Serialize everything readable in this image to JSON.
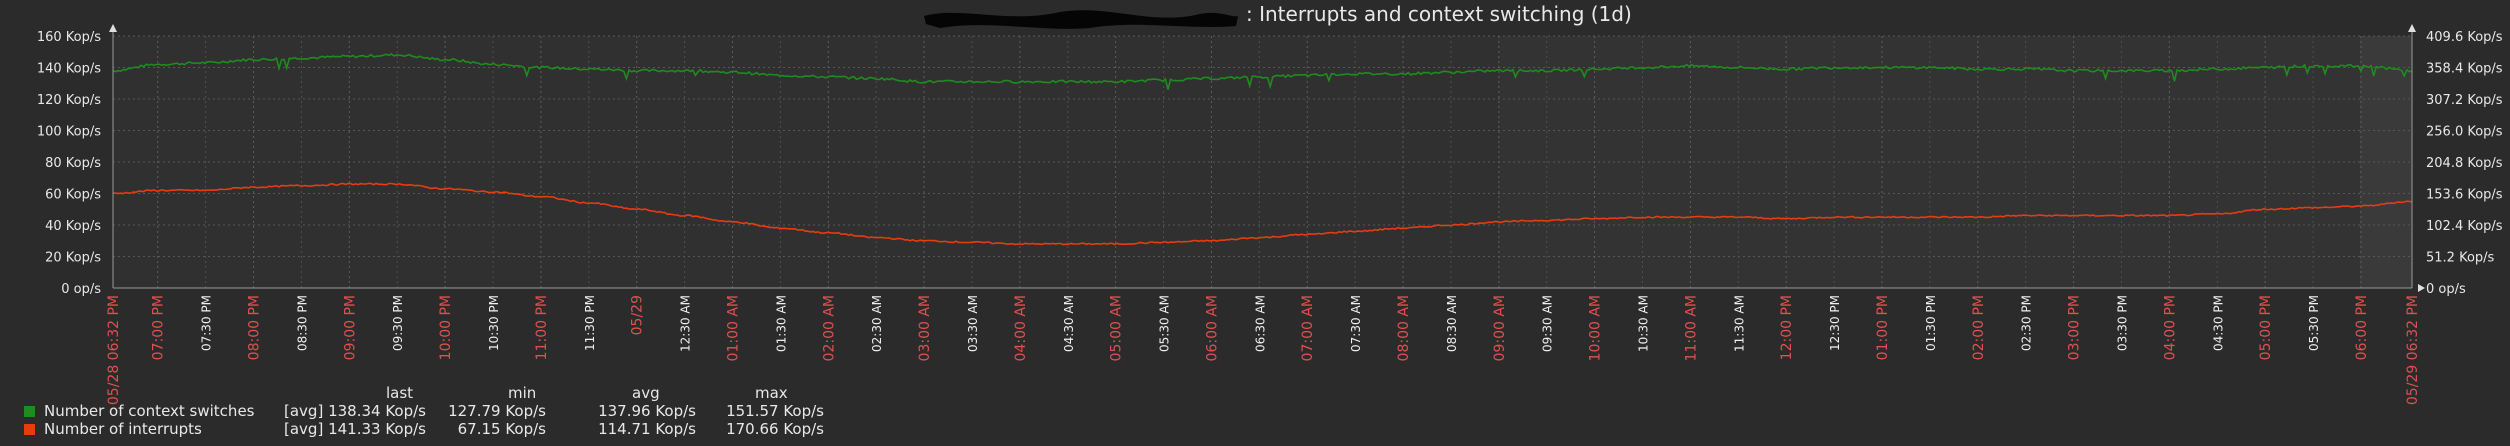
{
  "title": ": Interrupts and context switching (1d)",
  "colors": {
    "background": "#2b2b2b",
    "plot": "#333333",
    "grid": "#555555",
    "context": "#1e8c1e",
    "interrupts": "#e63c0f",
    "red_tick": "#e05050"
  },
  "chart_data": {
    "type": "line",
    "title": ": Interrupts and context switching (1d)",
    "x_start": "05/28 06:32 PM",
    "x_end": "05/29 06:32 PM",
    "x_ticks": [
      {
        "label": "05/28 06:32 PM",
        "h": 18.533,
        "major": true
      },
      {
        "label": "07:00 PM",
        "h": 19.0,
        "major": true
      },
      {
        "label": "07:30 PM",
        "h": 19.5,
        "major": false
      },
      {
        "label": "08:00 PM",
        "h": 20.0,
        "major": true
      },
      {
        "label": "08:30 PM",
        "h": 20.5,
        "major": false
      },
      {
        "label": "09:00 PM",
        "h": 21.0,
        "major": true
      },
      {
        "label": "09:30 PM",
        "h": 21.5,
        "major": false
      },
      {
        "label": "10:00 PM",
        "h": 22.0,
        "major": true
      },
      {
        "label": "10:30 PM",
        "h": 22.5,
        "major": false
      },
      {
        "label": "11:00 PM",
        "h": 23.0,
        "major": true
      },
      {
        "label": "11:30 PM",
        "h": 23.5,
        "major": false
      },
      {
        "label": "05/29",
        "h": 24.0,
        "major": true
      },
      {
        "label": "12:30 AM",
        "h": 24.5,
        "major": false
      },
      {
        "label": "01:00 AM",
        "h": 25.0,
        "major": true
      },
      {
        "label": "01:30 AM",
        "h": 25.5,
        "major": false
      },
      {
        "label": "02:00 AM",
        "h": 26.0,
        "major": true
      },
      {
        "label": "02:30 AM",
        "h": 26.5,
        "major": false
      },
      {
        "label": "03:00 AM",
        "h": 27.0,
        "major": true
      },
      {
        "label": "03:30 AM",
        "h": 27.5,
        "major": false
      },
      {
        "label": "04:00 AM",
        "h": 28.0,
        "major": true
      },
      {
        "label": "04:30 AM",
        "h": 28.5,
        "major": false
      },
      {
        "label": "05:00 AM",
        "h": 29.0,
        "major": true
      },
      {
        "label": "05:30 AM",
        "h": 29.5,
        "major": false
      },
      {
        "label": "06:00 AM",
        "h": 30.0,
        "major": true
      },
      {
        "label": "06:30 AM",
        "h": 30.5,
        "major": false
      },
      {
        "label": "07:00 AM",
        "h": 31.0,
        "major": true
      },
      {
        "label": "07:30 AM",
        "h": 31.5,
        "major": false
      },
      {
        "label": "08:00 AM",
        "h": 32.0,
        "major": true
      },
      {
        "label": "08:30 AM",
        "h": 32.5,
        "major": false
      },
      {
        "label": "09:00 AM",
        "h": 33.0,
        "major": true
      },
      {
        "label": "09:30 AM",
        "h": 33.5,
        "major": false
      },
      {
        "label": "10:00 AM",
        "h": 34.0,
        "major": true
      },
      {
        "label": "10:30 AM",
        "h": 34.5,
        "major": false
      },
      {
        "label": "11:00 AM",
        "h": 35.0,
        "major": true
      },
      {
        "label": "11:30 AM",
        "h": 35.5,
        "major": false
      },
      {
        "label": "12:00 PM",
        "h": 36.0,
        "major": true
      },
      {
        "label": "12:30 PM",
        "h": 36.5,
        "major": false
      },
      {
        "label": "01:00 PM",
        "h": 37.0,
        "major": true
      },
      {
        "label": "01:30 PM",
        "h": 37.5,
        "major": false
      },
      {
        "label": "02:00 PM",
        "h": 38.0,
        "major": true
      },
      {
        "label": "02:30 PM",
        "h": 38.5,
        "major": false
      },
      {
        "label": "03:00 PM",
        "h": 39.0,
        "major": true
      },
      {
        "label": "03:30 PM",
        "h": 39.5,
        "major": false
      },
      {
        "label": "04:00 PM",
        "h": 40.0,
        "major": true
      },
      {
        "label": "04:30 PM",
        "h": 40.5,
        "major": false
      },
      {
        "label": "05:00 PM",
        "h": 41.0,
        "major": true
      },
      {
        "label": "05:30 PM",
        "h": 41.5,
        "major": false
      },
      {
        "label": "06:00 PM",
        "h": 42.0,
        "major": true
      },
      {
        "label": "05/29 06:32 PM",
        "h": 42.533,
        "major": true
      }
    ],
    "y_left": {
      "min": 0,
      "max": 160,
      "ticks": [
        {
          "v": 0,
          "label": "0 op/s"
        },
        {
          "v": 20,
          "label": "20 Kop/s"
        },
        {
          "v": 40,
          "label": "40 Kop/s"
        },
        {
          "v": 60,
          "label": "60 Kop/s"
        },
        {
          "v": 80,
          "label": "80 Kop/s"
        },
        {
          "v": 100,
          "label": "100 Kop/s"
        },
        {
          "v": 120,
          "label": "120 Kop/s"
        },
        {
          "v": 140,
          "label": "140 Kop/s"
        },
        {
          "v": 160,
          "label": "160 Kop/s"
        }
      ]
    },
    "y_right": {
      "min": 0,
      "max": 409.6,
      "ticks": [
        {
          "v": 0,
          "label": "0 op/s"
        },
        {
          "v": 51.2,
          "label": "51.2 Kop/s"
        },
        {
          "v": 102.4,
          "label": "102.4 Kop/s"
        },
        {
          "v": 153.6,
          "label": "153.6 Kop/s"
        },
        {
          "v": 204.8,
          "label": "204.8 Kop/s"
        },
        {
          "v": 256.0,
          "label": "256.0 Kop/s"
        },
        {
          "v": 307.2,
          "label": "307.2 Kop/s"
        },
        {
          "v": 358.4,
          "label": "358.4 Kop/s"
        },
        {
          "v": 409.6,
          "label": "409.6 Kop/s"
        }
      ]
    },
    "series": [
      {
        "name": "Number of context switches",
        "axis": "left",
        "color": "#1e8c1e",
        "points": [
          [
            18.533,
            138
          ],
          [
            19.0,
            142
          ],
          [
            19.5,
            143
          ],
          [
            20.0,
            145
          ],
          [
            20.5,
            146
          ],
          [
            21.0,
            147
          ],
          [
            21.5,
            148
          ],
          [
            22.0,
            145
          ],
          [
            22.5,
            142
          ],
          [
            23.0,
            140
          ],
          [
            23.5,
            139
          ],
          [
            24.0,
            138
          ],
          [
            24.5,
            138
          ],
          [
            25.0,
            137
          ],
          [
            25.5,
            135
          ],
          [
            26.0,
            134
          ],
          [
            26.5,
            133
          ],
          [
            27.0,
            131
          ],
          [
            27.5,
            131
          ],
          [
            28.0,
            131
          ],
          [
            28.5,
            131
          ],
          [
            29.0,
            131
          ],
          [
            29.5,
            132
          ],
          [
            30.0,
            133
          ],
          [
            30.5,
            134
          ],
          [
            31.0,
            135
          ],
          [
            31.5,
            136
          ],
          [
            32.0,
            136
          ],
          [
            32.5,
            137
          ],
          [
            33.0,
            138
          ],
          [
            33.5,
            138
          ],
          [
            34.0,
            139
          ],
          [
            34.5,
            140
          ],
          [
            35.0,
            141
          ],
          [
            35.5,
            140
          ],
          [
            36.0,
            139
          ],
          [
            36.5,
            140
          ],
          [
            37.0,
            140
          ],
          [
            37.5,
            140
          ],
          [
            38.0,
            139
          ],
          [
            38.5,
            139
          ],
          [
            39.0,
            138
          ],
          [
            39.5,
            138
          ],
          [
            40.0,
            138
          ],
          [
            40.5,
            139
          ],
          [
            41.0,
            140
          ],
          [
            41.5,
            141
          ],
          [
            42.0,
            141
          ],
          [
            42.533,
            138
          ]
        ]
      },
      {
        "name": "Number of interrupts",
        "axis": "left",
        "color": "#e63c0f",
        "points": [
          [
            18.533,
            60
          ],
          [
            19.0,
            62
          ],
          [
            19.5,
            62
          ],
          [
            20.0,
            64
          ],
          [
            20.5,
            65
          ],
          [
            21.0,
            66
          ],
          [
            21.5,
            66
          ],
          [
            22.0,
            63
          ],
          [
            22.5,
            61
          ],
          [
            23.0,
            58
          ],
          [
            23.5,
            54
          ],
          [
            24.0,
            50
          ],
          [
            24.5,
            46
          ],
          [
            25.0,
            42
          ],
          [
            25.5,
            38
          ],
          [
            26.0,
            35
          ],
          [
            26.5,
            32
          ],
          [
            27.0,
            30
          ],
          [
            27.5,
            29
          ],
          [
            28.0,
            28
          ],
          [
            28.5,
            28
          ],
          [
            29.0,
            28
          ],
          [
            29.5,
            29
          ],
          [
            30.0,
            30
          ],
          [
            30.5,
            32
          ],
          [
            31.0,
            34
          ],
          [
            31.5,
            36
          ],
          [
            32.0,
            38
          ],
          [
            32.5,
            40
          ],
          [
            33.0,
            42
          ],
          [
            33.5,
            43
          ],
          [
            34.0,
            44
          ],
          [
            34.5,
            45
          ],
          [
            35.0,
            45
          ],
          [
            35.5,
            45
          ],
          [
            36.0,
            44
          ],
          [
            36.5,
            45
          ],
          [
            37.0,
            45
          ],
          [
            37.5,
            45
          ],
          [
            38.0,
            45
          ],
          [
            38.5,
            46
          ],
          [
            39.0,
            46
          ],
          [
            39.5,
            46
          ],
          [
            40.0,
            46
          ],
          [
            40.5,
            47
          ],
          [
            41.0,
            50
          ],
          [
            41.5,
            51
          ],
          [
            42.0,
            52
          ],
          [
            42.533,
            55
          ]
        ]
      }
    ]
  },
  "legend": {
    "headers": {
      "last": "last",
      "min": "min",
      "avg": "avg",
      "max": "max"
    },
    "rows": [
      {
        "name": "Number of context switches",
        "func": "[avg]",
        "last": "138.34 Kop/s",
        "min": "127.79 Kop/s",
        "avg": "137.96 Kop/s",
        "max": "151.57 Kop/s",
        "color": "#1e8c1e"
      },
      {
        "name": "Number of interrupts",
        "func": "[avg]",
        "last": "141.33 Kop/s",
        "min": "67.15 Kop/s",
        "avg": "114.71 Kop/s",
        "max": "170.66 Kop/s",
        "color": "#e63c0f"
      }
    ]
  }
}
